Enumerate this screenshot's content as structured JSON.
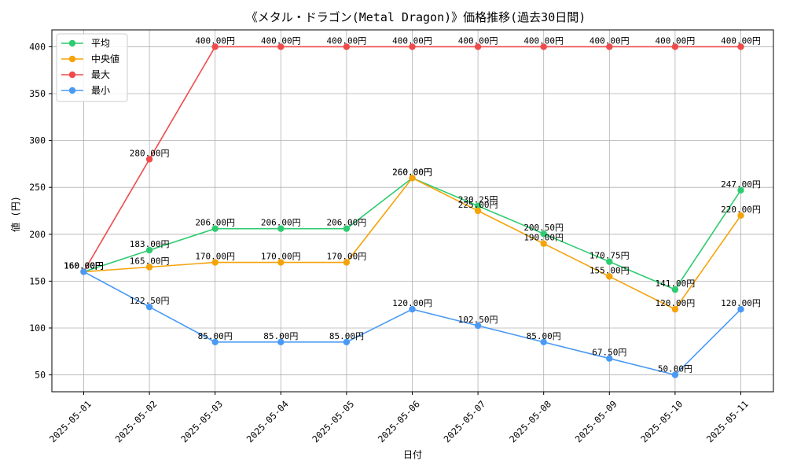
{
  "chart_data": {
    "type": "line",
    "title": "《メタル・ドラゴン(Metal Dragon)》価格推移(過去30日間)",
    "xlabel": "日付",
    "ylabel": "値 (円)",
    "ylim": [
      32,
      418
    ],
    "yticks": [
      50,
      100,
      150,
      200,
      250,
      300,
      350,
      400
    ],
    "grid": true,
    "legend_position": "top-left",
    "categories": [
      "2025-05-01",
      "2025-05-02",
      "2025-05-03",
      "2025-05-04",
      "2025-05-05",
      "2025-05-06",
      "2025-05-07",
      "2025-05-08",
      "2025-05-09",
      "2025-05-10",
      "2025-05-11"
    ],
    "series": [
      {
        "name": "平均",
        "color": "#2ecc71",
        "values": [
          160.0,
          183.0,
          206.0,
          206.0,
          206.0,
          260.0,
          230.25,
          200.5,
          170.75,
          141.0,
          247.0
        ],
        "labels": [
          "160.00円",
          "183.00円",
          "206.00円",
          "206.00円",
          "206.00円",
          "260.00円",
          "230.25円",
          "200.50円",
          "170.75円",
          "141.00円",
          "247.00円"
        ]
      },
      {
        "name": "中央値",
        "color": "#f5a30a",
        "values": [
          160.0,
          165.0,
          170.0,
          170.0,
          170.0,
          260.0,
          225.0,
          190.0,
          155.0,
          120.0,
          220.0
        ],
        "labels": [
          "160.00円",
          "165.00円",
          "170.00円",
          "170.00円",
          "170.00円",
          "260.00円",
          "225.00円",
          "190.00円",
          "155.00円",
          "120.00円",
          "220.00円"
        ]
      },
      {
        "name": "最大",
        "color": "#ef4b4b",
        "values": [
          160.0,
          280.0,
          400.0,
          400.0,
          400.0,
          400.0,
          400.0,
          400.0,
          400.0,
          400.0,
          400.0
        ],
        "labels": [
          "160.00円",
          "280.00円",
          "400.00円",
          "400.00円",
          "400.00円",
          "400.00円",
          "400.00円",
          "400.00円",
          "400.00円",
          "400.00円",
          "400.00円"
        ]
      },
      {
        "name": "最小",
        "color": "#4a9af5",
        "values": [
          160.0,
          122.5,
          85.0,
          85.0,
          85.0,
          120.0,
          102.5,
          85.0,
          67.5,
          50.0,
          120.0
        ],
        "labels": [
          "160.00円",
          "122.50円",
          "85.00円",
          "85.00円",
          "85.00円",
          "120.00円",
          "102.50円",
          "85.00円",
          "67.50円",
          "50.00円",
          "120.00円"
        ]
      }
    ]
  }
}
